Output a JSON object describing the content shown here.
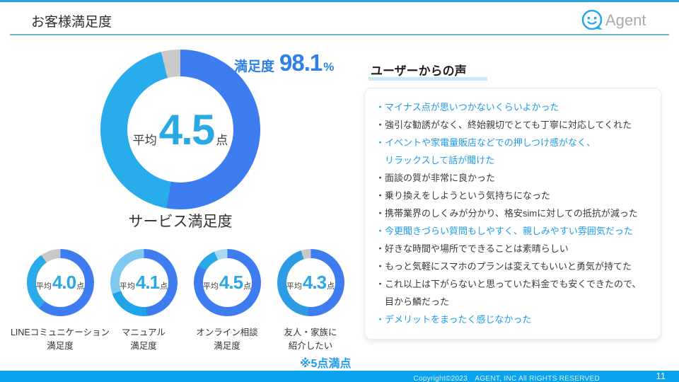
{
  "slide": {
    "title": "お客様満足度"
  },
  "logo": {
    "text": "Agent"
  },
  "colors": {
    "primary_blue": "#3E7DF0",
    "sky_blue": "#29A9E8",
    "pale_blue": "#A8D8F4",
    "gray_segment": "#C9C9C9",
    "text_blue": "#1E9BE8",
    "callout_blue": "#2F7FE8",
    "footer_blue": "#0AA3EE"
  },
  "chart_data": {
    "type": "donut-group",
    "note": "※5点満点",
    "scale_max": 5,
    "main": {
      "type": "donut",
      "caption": "サービス満足度",
      "callout_label": "満足度",
      "callout_value": "98.1",
      "callout_unit": "%",
      "center_prefix": "平均",
      "center_value": "4.5",
      "center_suffix": "点",
      "segments": [
        {
          "name": "segment-dark-blue",
          "color": "#3E7DF0",
          "deg": 190
        },
        {
          "name": "segment-light-blue",
          "color": "#29ACEC",
          "deg": 156
        },
        {
          "name": "segment-gray",
          "color": "#C9C9C9",
          "deg": 14
        }
      ]
    },
    "small": [
      {
        "type": "donut",
        "center_prefix": "平均",
        "center_value": "4.0",
        "center_suffix": "点",
        "label": "LINEコミュニケーション\n満足度",
        "segments": [
          {
            "name": "segment-dark-blue",
            "color": "#3E7DF0",
            "deg": 220
          },
          {
            "name": "segment-light-blue",
            "color": "#2BAAE8",
            "deg": 105
          },
          {
            "name": "segment-gray",
            "color": "#C9C9C9",
            "deg": 35
          }
        ]
      },
      {
        "type": "donut",
        "center_prefix": "平均",
        "center_value": "4.1",
        "center_suffix": "点",
        "label": "マニュアル\n満足度",
        "segments": [
          {
            "name": "segment-dark-blue",
            "color": "#3E7DF0",
            "deg": 175
          },
          {
            "name": "segment-light-blue",
            "color": "#21A3E8",
            "deg": 75
          },
          {
            "name": "segment-pale-blue",
            "color": "#7FC9EE",
            "deg": 110
          }
        ]
      },
      {
        "type": "donut",
        "center_prefix": "平均",
        "center_value": "4.5",
        "center_suffix": "点",
        "label": "オンライン相談\n満足度",
        "segments": [
          {
            "name": "segment-dark-blue",
            "color": "#3E7DF0",
            "deg": 300
          },
          {
            "name": "segment-light-blue",
            "color": "#29A9E8",
            "deg": 37
          },
          {
            "name": "segment-pale-blue",
            "color": "#A8D8F4",
            "deg": 23
          }
        ]
      },
      {
        "type": "donut",
        "center_prefix": "平均",
        "center_value": "4.3",
        "center_suffix": "点",
        "label": "友人・家族に\n紹介したい",
        "segments": [
          {
            "name": "segment-dark-blue",
            "color": "#3E7DF0",
            "deg": 185
          },
          {
            "name": "segment-light-blue",
            "color": "#2E9BE5",
            "deg": 158
          },
          {
            "name": "segment-gray",
            "color": "#C9C9C9",
            "deg": 17
          }
        ]
      }
    ]
  },
  "voices": {
    "heading": "ユーザーからの声",
    "items": [
      {
        "tone": "blue",
        "text": "・マイナス点が思いつかないくらいよかった"
      },
      {
        "tone": "dark",
        "text": "・強引な勧誘がなく、終始親切でとても丁寧に対応してくれた"
      },
      {
        "tone": "blue",
        "text": "・イベントや家電量販店などでの押しつけ感がなく、\nリラックスして話が聞けた"
      },
      {
        "tone": "dark",
        "text": "・面談の質が非常に良かった"
      },
      {
        "tone": "dark",
        "text": "・乗り換えをしようという気持ちになった"
      },
      {
        "tone": "dark",
        "text": "・携帯業界のしくみが分かり、格安simに対しての抵抗が減った"
      },
      {
        "tone": "blue",
        "text": "・今更聞きづらい質問もしやすく、親しみやすい雰囲気だった"
      },
      {
        "tone": "dark",
        "text": "・好きな時間や場所でできることは素晴らしい"
      },
      {
        "tone": "dark",
        "text": "・もっと気軽にスマホのプランは変えてもいいと勇気が持てた"
      },
      {
        "tone": "dark",
        "text": "・これ以上は下がらないと思っていた料金でも安くできたので、\n目から鱗だった"
      },
      {
        "tone": "blue",
        "text": "・デメリットをまったく感じなかった"
      }
    ]
  },
  "footer": {
    "copyright": "Copyright©2023　AGENT, INC All RIGHTS RESERVED",
    "page": "11"
  }
}
